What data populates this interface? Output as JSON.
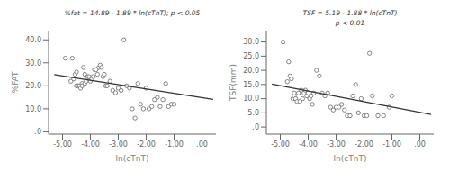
{
  "chart_data": [
    {
      "type": "scatter",
      "x_label": "ln(cTnT)",
      "y_label": "%FAT",
      "xlim": [
        -5.5,
        0.5
      ],
      "ylim": [
        -1,
        44
      ],
      "xticks": [
        {
          "value": -5.0,
          "label": "-5.00"
        },
        {
          "value": -4.0,
          "label": "-4.00"
        },
        {
          "value": -3.0,
          "label": "-3.00"
        },
        {
          "value": -2.0,
          "label": "-2.00"
        },
        {
          "value": -1.0,
          "label": "-1.00"
        },
        {
          "value": 0.0,
          "label": ".00"
        }
      ],
      "yticks": [
        {
          "value": 0,
          "label": ".0"
        },
        {
          "value": 10.0,
          "label": "10.0"
        },
        {
          "value": 20.0,
          "label": "20.0"
        },
        {
          "value": 30.0,
          "label": "30.0"
        },
        {
          "value": 40.0,
          "label": "40.0"
        }
      ],
      "annotations": [
        "%fat = 14.89 - 1.89 * ln(cTnT); p < 0.05"
      ],
      "series": [
        {
          "type": "scatter",
          "color": "#777777",
          "x": [
            -4.9,
            -4.7,
            -4.65,
            -4.6,
            -4.55,
            -4.5,
            -4.5,
            -4.45,
            -4.4,
            -4.35,
            -4.3,
            -4.3,
            -4.25,
            -4.2,
            -4.2,
            -4.15,
            -4.1,
            -4.05,
            -4.0,
            -3.95,
            -3.9,
            -3.85,
            -3.8,
            -3.75,
            -3.7,
            -3.65,
            -3.6,
            -3.55,
            -3.5,
            -3.45,
            -3.4,
            -3.3,
            -3.2,
            -3.1,
            -3.0,
            -2.9,
            -2.8,
            -2.7,
            -2.6,
            -2.5,
            -2.4,
            -2.3,
            -2.2,
            -2.1,
            -2.0,
            -1.9,
            -1.8,
            -1.7,
            -1.6,
            -1.5,
            -1.4,
            -1.3,
            -1.2,
            -1.1,
            -1.0
          ],
          "values": [
            32,
            22,
            32,
            23,
            25,
            20,
            26,
            20,
            20,
            19,
            21,
            20,
            28,
            21,
            25,
            22,
            24,
            24,
            22,
            23,
            24,
            27,
            27,
            25,
            28,
            29,
            28,
            24,
            25,
            20,
            20,
            22,
            18,
            17,
            19,
            18,
            40,
            20,
            19,
            10,
            6,
            21,
            12,
            10,
            19,
            10,
            11,
            14,
            15,
            11,
            14,
            21,
            11,
            12,
            12
          ]
        },
        {
          "type": "line",
          "color": "#333333",
          "x": [
            -5.3,
            0.4
          ],
          "values": [
            24.907,
            14.134
          ]
        }
      ]
    },
    {
      "type": "scatter",
      "x_label": "ln(cTnT)",
      "y_label": "TSF(mm)",
      "xlim": [
        -5.5,
        0.5
      ],
      "ylim": [
        -2.5,
        34
      ],
      "xticks": [
        {
          "value": -5.0,
          "label": "-5.00"
        },
        {
          "value": -4.0,
          "label": "-4.00"
        },
        {
          "value": -3.0,
          "label": "-3.00"
        },
        {
          "value": -2.0,
          "label": "-2.00"
        },
        {
          "value": -1.0,
          "label": "-1.00"
        },
        {
          "value": 0.0,
          "label": ".00"
        }
      ],
      "yticks": [
        {
          "value": 0,
          "label": ".0"
        },
        {
          "value": 5,
          "label": "5.0"
        },
        {
          "value": 10,
          "label": "10.0"
        },
        {
          "value": 15,
          "label": "15.0"
        },
        {
          "value": 20,
          "label": "20.0"
        },
        {
          "value": 25,
          "label": "25.0"
        },
        {
          "value": 30,
          "label": "30.0"
        }
      ],
      "annotations": [
        "TSF = 5.19 - 1.88 * ln(cTnT)",
        "p < 0.01"
      ],
      "series": [
        {
          "type": "scatter",
          "color": "#777777",
          "x": [
            -4.9,
            -4.75,
            -4.7,
            -4.65,
            -4.6,
            -4.55,
            -4.5,
            -4.5,
            -4.45,
            -4.4,
            -4.35,
            -4.3,
            -4.25,
            -4.2,
            -4.15,
            -4.1,
            -4.05,
            -4.0,
            -3.95,
            -3.9,
            -3.85,
            -3.8,
            -3.7,
            -3.6,
            -3.5,
            -3.4,
            -3.3,
            -3.2,
            -3.1,
            -3.0,
            -2.9,
            -2.8,
            -2.7,
            -2.6,
            -2.5,
            -2.4,
            -2.3,
            -2.2,
            -2.1,
            -2.0,
            -1.9,
            -1.8,
            -1.7,
            -1.5,
            -1.3,
            -1.1,
            -1.0
          ],
          "values": [
            30,
            16,
            23,
            18,
            17,
            10,
            11,
            12,
            10,
            9,
            12,
            9,
            13,
            10,
            12,
            13,
            11,
            12,
            10,
            11,
            8,
            12,
            20,
            18,
            12,
            11,
            12,
            7,
            6,
            7,
            7,
            8,
            6,
            4,
            4,
            11,
            15,
            5,
            10,
            4,
            4,
            26,
            11,
            4,
            4,
            7,
            11
          ]
        },
        {
          "type": "line",
          "color": "#333333",
          "x": [
            -5.3,
            0.4
          ],
          "values": [
            15.154,
            4.438
          ]
        }
      ]
    }
  ]
}
